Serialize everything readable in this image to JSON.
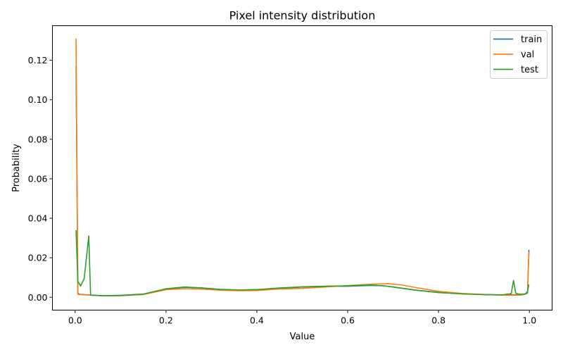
{
  "chart_data": {
    "type": "line",
    "title": "Pixel intensity distribution",
    "xlabel": "Value",
    "ylabel": "Probability",
    "xlim": [
      -0.05,
      1.05
    ],
    "ylim": [
      -0.0065,
      0.1375
    ],
    "xticks": [
      0.0,
      0.2,
      0.4,
      0.6,
      0.8,
      1.0
    ],
    "xtick_labels": [
      "0.0",
      "0.2",
      "0.4",
      "0.6",
      "0.8",
      "1.0"
    ],
    "yticks": [
      0.0,
      0.02,
      0.04,
      0.06,
      0.08,
      0.1,
      0.12
    ],
    "ytick_labels": [
      "0.00",
      "0.02",
      "0.04",
      "0.06",
      "0.08",
      "0.10",
      "0.12"
    ],
    "grid": false,
    "legend_position": "top-right",
    "series": [
      {
        "name": "train",
        "color": "#1f77b4",
        "x": [
          0.002,
          0.006,
          0.01,
          0.03,
          0.06,
          0.1,
          0.15,
          0.2,
          0.24,
          0.28,
          0.32,
          0.36,
          0.4,
          0.45,
          0.5,
          0.55,
          0.6,
          0.65,
          0.68,
          0.7,
          0.75,
          0.8,
          0.85,
          0.9,
          0.95,
          0.98,
          0.99,
          0.996,
          0.999
        ],
        "y": [
          0.117,
          0.002,
          0.0015,
          0.0012,
          0.0008,
          0.001,
          0.0016,
          0.004,
          0.0051,
          0.0047,
          0.0039,
          0.0036,
          0.0038,
          0.0045,
          0.0052,
          0.0055,
          0.0056,
          0.006,
          0.0058,
          0.0052,
          0.0036,
          0.0025,
          0.0018,
          0.0014,
          0.0012,
          0.0013,
          0.0016,
          0.0028,
          0.024
        ]
      },
      {
        "name": "val",
        "color": "#ff7f0e",
        "x": [
          0.002,
          0.006,
          0.01,
          0.03,
          0.06,
          0.1,
          0.15,
          0.2,
          0.24,
          0.28,
          0.32,
          0.36,
          0.4,
          0.45,
          0.5,
          0.55,
          0.6,
          0.65,
          0.69,
          0.72,
          0.75,
          0.8,
          0.85,
          0.9,
          0.95,
          0.98,
          0.99,
          0.996,
          0.999
        ],
        "y": [
          0.131,
          0.0015,
          0.0014,
          0.0011,
          0.0008,
          0.0008,
          0.0014,
          0.0038,
          0.0044,
          0.0041,
          0.0036,
          0.0033,
          0.0034,
          0.0042,
          0.0045,
          0.0052,
          0.0059,
          0.0066,
          0.0069,
          0.0062,
          0.0049,
          0.003,
          0.002,
          0.0014,
          0.001,
          0.0011,
          0.0015,
          0.0022,
          0.023
        ]
      },
      {
        "name": "test",
        "color": "#2ca02c",
        "x": [
          0.002,
          0.006,
          0.012,
          0.02,
          0.03,
          0.034,
          0.038,
          0.05,
          0.08,
          0.1,
          0.15,
          0.2,
          0.24,
          0.28,
          0.32,
          0.36,
          0.4,
          0.45,
          0.5,
          0.55,
          0.6,
          0.65,
          0.68,
          0.7,
          0.75,
          0.8,
          0.85,
          0.9,
          0.94,
          0.96,
          0.965,
          0.97,
          0.98,
          0.99,
          0.995,
          0.999
        ],
        "y": [
          0.034,
          0.008,
          0.0057,
          0.0095,
          0.031,
          0.0012,
          0.001,
          0.0009,
          0.0008,
          0.0009,
          0.0016,
          0.0043,
          0.0052,
          0.0047,
          0.004,
          0.0037,
          0.0039,
          0.0047,
          0.0053,
          0.0056,
          0.0058,
          0.0062,
          0.0058,
          0.0052,
          0.0036,
          0.0024,
          0.0017,
          0.0013,
          0.0012,
          0.0018,
          0.0085,
          0.002,
          0.0015,
          0.0016,
          0.002,
          0.0065
        ]
      }
    ]
  }
}
